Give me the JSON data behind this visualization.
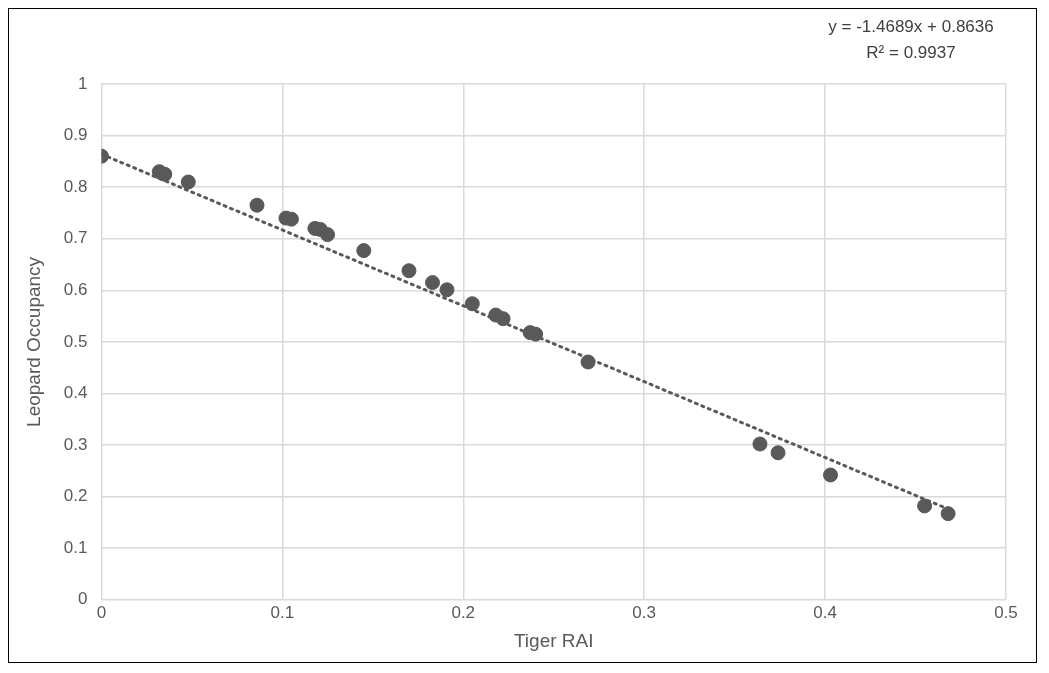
{
  "chart_data": {
    "type": "scatter",
    "xlabel": "Tiger RAI",
    "ylabel": "Leopard Occupancy",
    "annotations": [
      "y = -1.4689x + 0.8636",
      "R² = 0.9937"
    ],
    "xlim": [
      0,
      0.5
    ],
    "xticks": [
      0,
      0.1,
      0.2,
      0.3,
      0.4,
      0.5
    ],
    "ylim": [
      0,
      1
    ],
    "yticks": [
      0,
      0.1,
      0.2,
      0.3,
      0.4,
      0.5,
      0.6,
      0.7,
      0.8,
      0.9,
      1
    ],
    "grid": true,
    "legend": false,
    "marker": "circle",
    "series": [
      {
        "color": "#595959",
        "x": [
          0,
          0.032,
          0.035,
          0.048,
          0.086,
          0.102,
          0.105,
          0.118,
          0.121,
          0.125,
          0.145,
          0.17,
          0.183,
          0.191,
          0.205,
          0.218,
          0.222,
          0.237,
          0.24,
          0.269,
          0.364,
          0.374,
          0.403,
          0.455,
          0.468
        ],
        "values": [
          0.86,
          0.83,
          0.825,
          0.81,
          0.765,
          0.74,
          0.738,
          0.72,
          0.718,
          0.708,
          0.677,
          0.638,
          0.615,
          0.601,
          0.574,
          0.552,
          0.545,
          0.518,
          0.515,
          0.461,
          0.302,
          0.285,
          0.242,
          0.182,
          0.167
        ]
      },
      {
        "type": "line",
        "color": "#595959",
        "line_style": "dotted",
        "marker": "none",
        "x": [
          0,
          0.47
        ],
        "values": [
          0.864,
          0.173
        ]
      }
    ]
  }
}
